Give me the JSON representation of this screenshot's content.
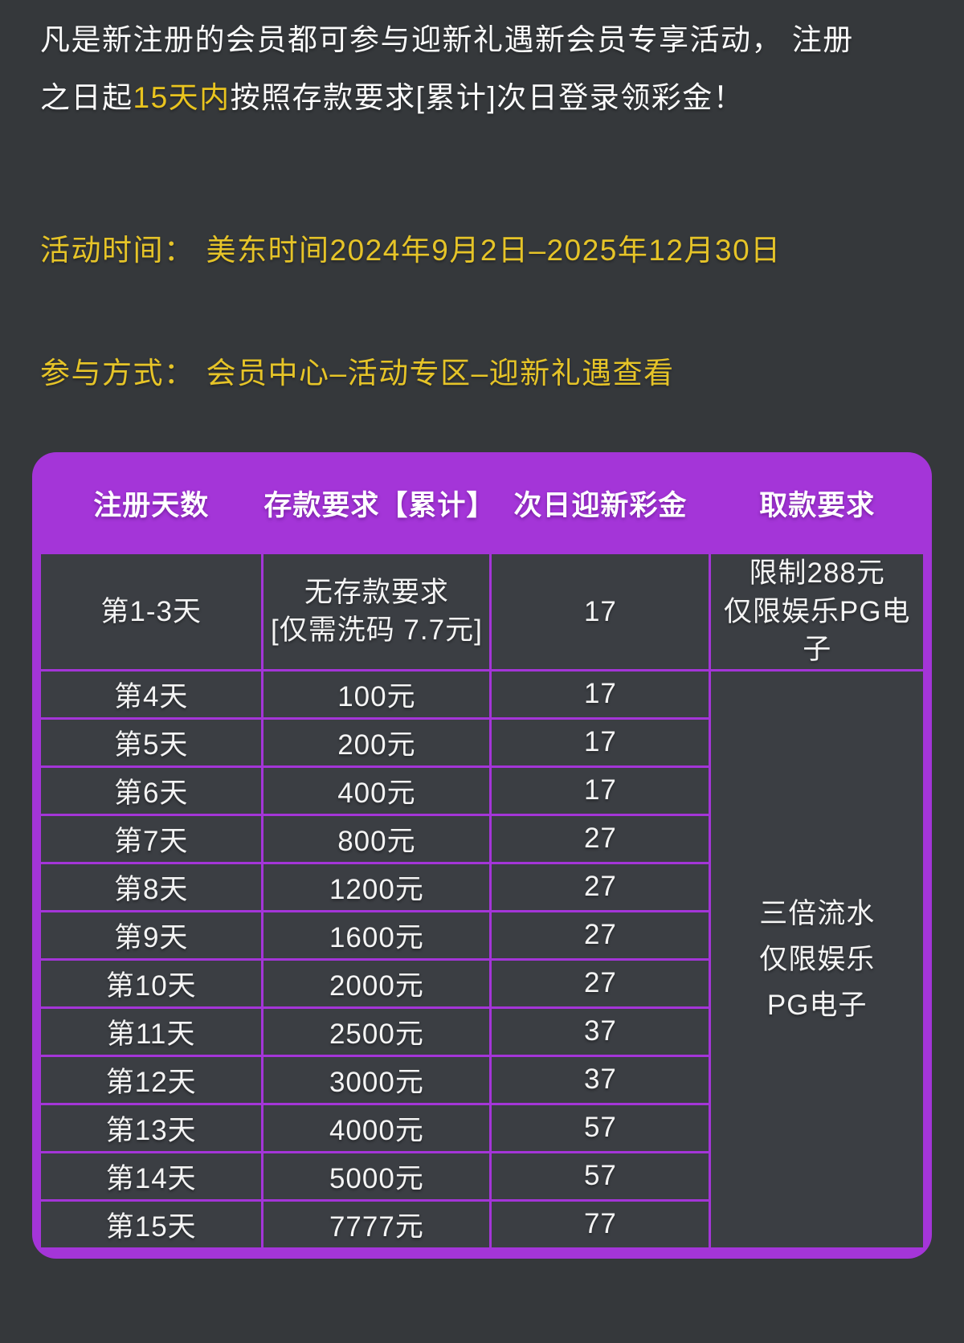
{
  "intro": {
    "line1": "凡是新注册的会员都可参与迎新礼遇新会员专享活动， 注册",
    "line2_prefix": "之日起",
    "line2_highlight": "15天内",
    "line2_suffix": "按照存款要求[累计]次日登录领彩金！"
  },
  "event_time": {
    "label": "活动时间：",
    "value": "美东时间2024年9月2日–2025年12月30日"
  },
  "participation": {
    "label": "参与方式：",
    "value": "会员中心–活动专区–迎新礼遇查看"
  },
  "table": {
    "headers": [
      "注册天数",
      "存款要求【累计】",
      "次日迎新彩金",
      "取款要求"
    ],
    "rows": [
      {
        "day": "第1-3天",
        "deposit": [
          "无存款要求",
          "[仅需洗码 7.7元]"
        ],
        "bonus": "17"
      },
      {
        "day": "第4天",
        "deposit": [
          "100元"
        ],
        "bonus": "17"
      },
      {
        "day": "第5天",
        "deposit": [
          "200元"
        ],
        "bonus": "17"
      },
      {
        "day": "第6天",
        "deposit": [
          "400元"
        ],
        "bonus": "17"
      },
      {
        "day": "第7天",
        "deposit": [
          "800元"
        ],
        "bonus": "27"
      },
      {
        "day": "第8天",
        "deposit": [
          "1200元"
        ],
        "bonus": "27"
      },
      {
        "day": "第9天",
        "deposit": [
          "1600元"
        ],
        "bonus": "27"
      },
      {
        "day": "第10天",
        "deposit": [
          "2000元"
        ],
        "bonus": "27"
      },
      {
        "day": "第11天",
        "deposit": [
          "2500元"
        ],
        "bonus": "37"
      },
      {
        "day": "第12天",
        "deposit": [
          "3000元"
        ],
        "bonus": "37"
      },
      {
        "day": "第13天",
        "deposit": [
          "4000元"
        ],
        "bonus": "57"
      },
      {
        "day": "第14天",
        "deposit": [
          "5000元"
        ],
        "bonus": "57"
      },
      {
        "day": "第15天",
        "deposit": [
          "7777元"
        ],
        "bonus": "77"
      }
    ],
    "withdraw_first": [
      "限制288元",
      "仅限娱乐PG电子"
    ],
    "withdraw_merged": [
      "三倍流水",
      "仅限娱乐",
      "PG电子"
    ]
  },
  "colors": {
    "page_background": "#35383b",
    "table_purple": "#a435d8",
    "cell_background": "#3b3e43",
    "highlight_yellow": "#e9c41f",
    "meta_yellow": "#e6c428",
    "text_white": "#ffffff"
  }
}
